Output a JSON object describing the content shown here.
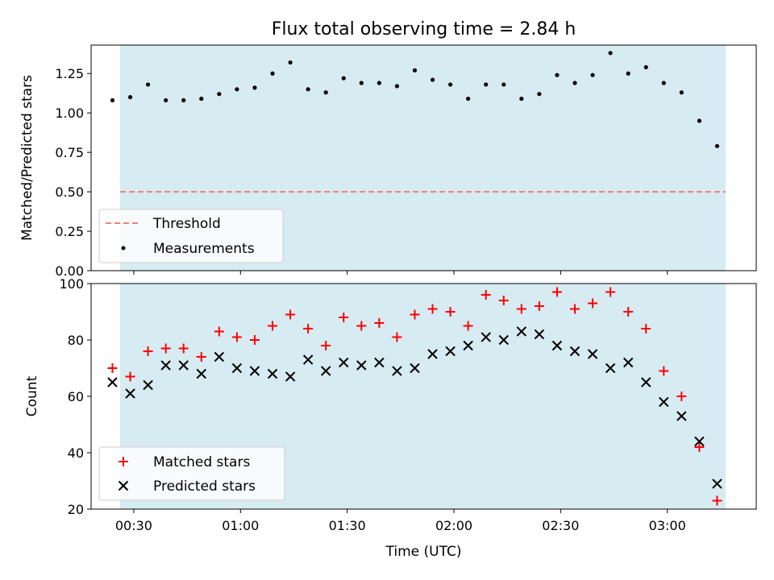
{
  "colors": {
    "observing_band": "#add8e6",
    "threshold_line": "#f08080",
    "measurements": "#000000",
    "matched_marker": "#ff0000",
    "predicted_marker": "#000000"
  },
  "chart_data": [
    {
      "type": "scatter",
      "title": "Flux total observing time = 2.84 h",
      "xlabel": "",
      "ylabel": "Matched/Predicted stars",
      "ylim": [
        0,
        1.43
      ],
      "yticks": [
        0.0,
        0.25,
        0.5,
        0.75,
        1.0,
        1.25
      ],
      "ytick_labels": [
        "0.00",
        "0.25",
        "0.50",
        "0.75",
        "1.00",
        "1.25"
      ],
      "grid": false,
      "legend_position": "lower-left",
      "threshold": {
        "name": "Threshold",
        "value": 0.5
      },
      "series": [
        {
          "name": "Measurements",
          "x": [
            "00:24",
            "00:29",
            "00:34",
            "00:39",
            "00:44",
            "00:49",
            "00:54",
            "00:59",
            "01:04",
            "01:09",
            "01:14",
            "01:19",
            "01:24",
            "01:29",
            "01:34",
            "01:39",
            "01:44",
            "01:49",
            "01:54",
            "01:59",
            "02:04",
            "02:09",
            "02:14",
            "02:19",
            "02:24",
            "02:29",
            "02:34",
            "02:39",
            "02:44",
            "02:49",
            "02:54",
            "02:59",
            "03:04",
            "03:09",
            "03:14"
          ],
          "y": [
            1.08,
            1.1,
            1.18,
            1.08,
            1.08,
            1.09,
            1.12,
            1.15,
            1.16,
            1.25,
            1.32,
            1.15,
            1.13,
            1.22,
            1.19,
            1.19,
            1.17,
            1.27,
            1.21,
            1.18,
            1.09,
            1.18,
            1.18,
            1.09,
            1.12,
            1.24,
            1.19,
            1.24,
            1.38,
            1.25,
            1.29,
            1.19,
            1.13,
            0.95,
            0.79
          ]
        }
      ]
    },
    {
      "type": "scatter",
      "title": "",
      "xlabel": "Time (UTC)",
      "ylabel": "Count",
      "xlim": [
        "00:18",
        "03:25"
      ],
      "ylim": [
        20,
        100
      ],
      "yticks": [
        20,
        40,
        60,
        80,
        100
      ],
      "xticks": [
        "00:30",
        "01:00",
        "01:30",
        "02:00",
        "02:30",
        "03:00"
      ],
      "grid": false,
      "legend_position": "lower-left",
      "series": [
        {
          "name": "Matched stars",
          "marker": "+",
          "x": [
            "00:24",
            "00:29",
            "00:34",
            "00:39",
            "00:44",
            "00:49",
            "00:54",
            "00:59",
            "01:04",
            "01:09",
            "01:14",
            "01:19",
            "01:24",
            "01:29",
            "01:34",
            "01:39",
            "01:44",
            "01:49",
            "01:54",
            "01:59",
            "02:04",
            "02:09",
            "02:14",
            "02:19",
            "02:24",
            "02:29",
            "02:34",
            "02:39",
            "02:44",
            "02:49",
            "02:54",
            "02:59",
            "03:04",
            "03:09",
            "03:14"
          ],
          "y": [
            70,
            67,
            76,
            77,
            77,
            74,
            83,
            81,
            80,
            85,
            89,
            84,
            78,
            88,
            85,
            86,
            81,
            89,
            91,
            90,
            85,
            96,
            94,
            91,
            92,
            97,
            91,
            93,
            97,
            90,
            84,
            69,
            60,
            42,
            23
          ]
        },
        {
          "name": "Predicted stars",
          "marker": "x",
          "x": [
            "00:24",
            "00:29",
            "00:34",
            "00:39",
            "00:44",
            "00:49",
            "00:54",
            "00:59",
            "01:04",
            "01:09",
            "01:14",
            "01:19",
            "01:24",
            "01:29",
            "01:34",
            "01:39",
            "01:44",
            "01:49",
            "01:54",
            "01:59",
            "02:04",
            "02:09",
            "02:14",
            "02:19",
            "02:24",
            "02:29",
            "02:34",
            "02:39",
            "02:44",
            "02:49",
            "02:54",
            "02:59",
            "03:04",
            "03:09",
            "03:14"
          ],
          "y": [
            65,
            61,
            64,
            71,
            71,
            68,
            74,
            70,
            69,
            68,
            67,
            73,
            69,
            72,
            71,
            72,
            69,
            70,
            75,
            76,
            78,
            81,
            80,
            83,
            82,
            78,
            76,
            75,
            70,
            72,
            65,
            58,
            53,
            44,
            29
          ]
        }
      ]
    }
  ]
}
